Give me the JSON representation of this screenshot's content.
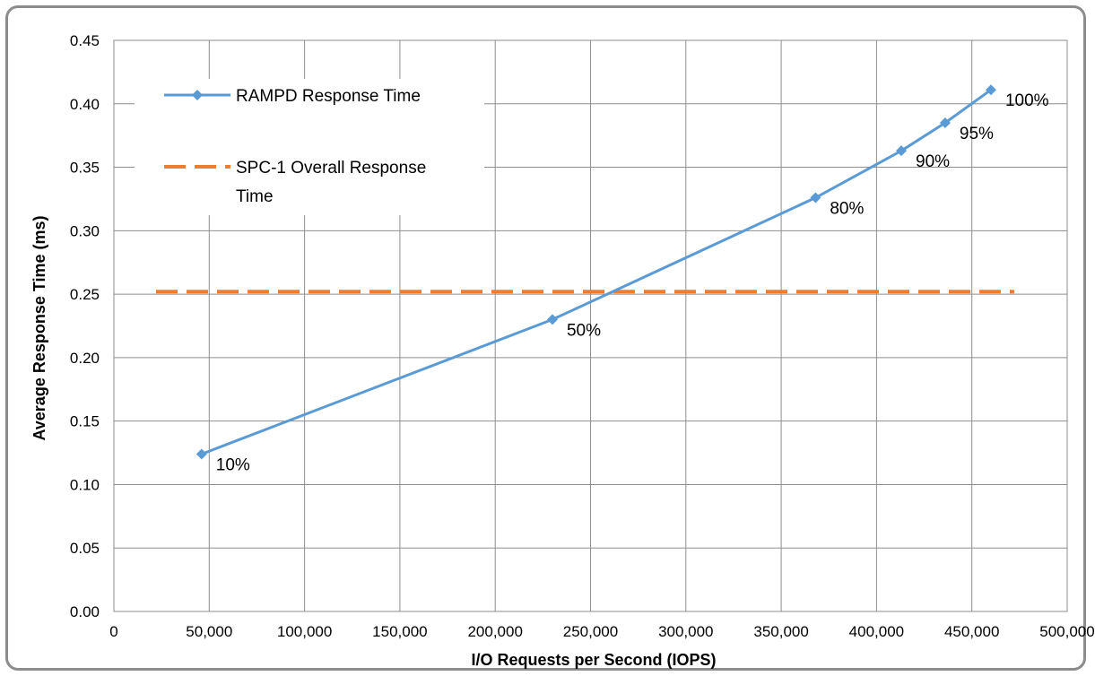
{
  "chart_data": {
    "type": "line",
    "title": "",
    "xlabel": "I/O Requests per Second (IOPS)",
    "ylabel": "Average Response Time (ms)",
    "xlim": [
      0,
      500000
    ],
    "ylim": [
      0,
      0.45
    ],
    "x_ticks": [
      "0",
      "50,000",
      "100,000",
      "150,000",
      "200,000",
      "250,000",
      "300,000",
      "350,000",
      "400,000",
      "450,000",
      "500,000"
    ],
    "y_ticks": [
      "0.00",
      "0.05",
      "0.10",
      "0.15",
      "0.20",
      "0.25",
      "0.30",
      "0.35",
      "0.40",
      "0.45"
    ],
    "grid": true,
    "legend_position": "top-left",
    "series": [
      {
        "name": "RAMPD Response Time",
        "color": "#5b9bd5",
        "marker": "diamond",
        "x": [
          46000,
          230000,
          368000,
          413000,
          436000,
          460000
        ],
        "y": [
          0.124,
          0.23,
          0.326,
          0.363,
          0.385,
          0.411
        ],
        "labels": [
          "10%",
          "50%",
          "80%",
          "90%",
          "95%",
          "100%"
        ]
      },
      {
        "name": "SPC-1 Overall Response Time",
        "color": "#ed7d31",
        "dashed": true,
        "x": [
          0,
          460000
        ],
        "y": [
          0.252,
          0.252
        ]
      }
    ],
    "legend": {
      "rampd": "RAMPD Response Time",
      "spc1_line1": "SPC-1 Overall Response",
      "spc1_line2": "Time"
    }
  }
}
